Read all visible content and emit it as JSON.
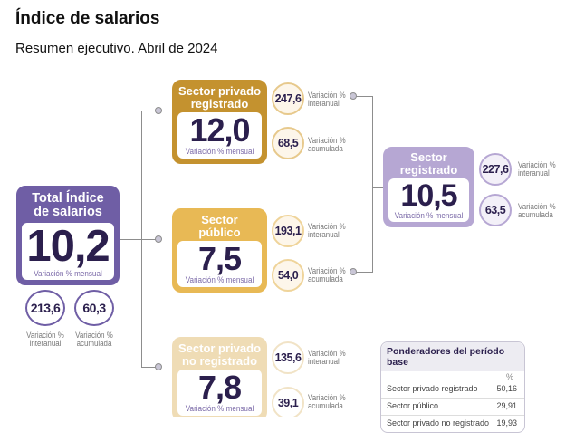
{
  "header": {
    "title": "Índice de salarios",
    "subtitle": "Resumen ejecutivo. Abril de 2024"
  },
  "colors": {
    "purple_dark": "#6f5ea5",
    "purple_light": "#b6a7d3",
    "gold_dark": "#c4922f",
    "gold_mid": "#e8b955",
    "gold_light": "#efdcb5",
    "number_text": "#2b1f4d",
    "connector": "#8d8d8d"
  },
  "total": {
    "title_line1": "Total Índice",
    "title_line2": "de salarios",
    "value": "10,2",
    "caption": "Variación % mensual",
    "interanual": "213,6",
    "interanual_label1": "Variación %",
    "interanual_label2": "interanual",
    "acumulada": "60,3",
    "acumulada_label1": "Variación %",
    "acumulada_label2": "acumulada"
  },
  "sectors": [
    {
      "title_line1": "Sector privado",
      "title_line2": "registrado",
      "value": "12,0",
      "caption": "Variación % mensual",
      "interanual": "247,6",
      "interanual_label1": "Variación %",
      "interanual_label2": "interanual",
      "acumulada": "68,5",
      "acumulada_label1": "Variación %",
      "acumulada_label2": "acumulada"
    },
    {
      "title_line1": "Sector",
      "title_line2": "público",
      "value": "7,5",
      "caption": "Variación % mensual",
      "interanual": "193,1",
      "interanual_label1": "Variación %",
      "interanual_label2": "interanual",
      "acumulada": "54,0",
      "acumulada_label1": "Variación %",
      "acumulada_label2": "acumulada"
    },
    {
      "title_line1": "Sector privado",
      "title_line2": "no registrado",
      "value": "7,8",
      "caption": "Variación % mensual",
      "interanual": "135,6",
      "interanual_label1": "Variación %",
      "interanual_label2": "interanual",
      "acumulada": "39,1",
      "acumulada_label1": "Variación %",
      "acumulada_label2": "acumulada"
    }
  ],
  "registrado": {
    "title_line1": "Sector",
    "title_line2": "registrado",
    "value": "10,5",
    "caption": "Variación % mensual",
    "interanual": "227,6",
    "interanual_label1": "Variación %",
    "interanual_label2": "interanual",
    "acumulada": "63,5",
    "acumulada_label1": "Variación %",
    "acumulada_label2": "acumulada"
  },
  "ponderadores": {
    "title": "Ponderadores del período base",
    "unit": "%",
    "rows": [
      {
        "label": "Sector privado registrado",
        "value": "50,16"
      },
      {
        "label": "Sector público",
        "value": "29,91"
      },
      {
        "label": "Sector privado no registrado",
        "value": "19,93"
      }
    ]
  }
}
